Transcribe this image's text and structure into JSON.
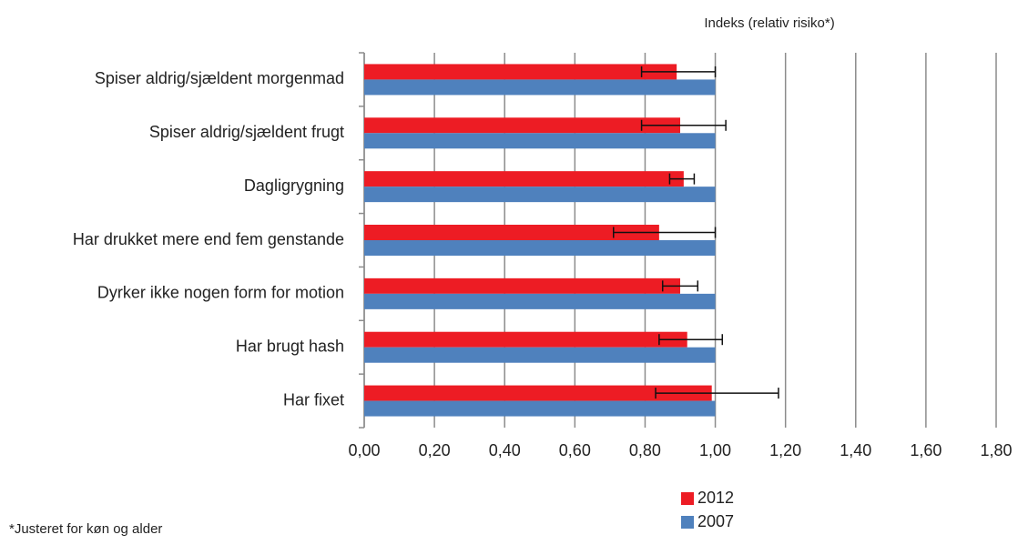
{
  "chart_data": {
    "type": "hbar",
    "axis_title": "Indeks (relativ risiko*)",
    "footnote": "*Justeret for køn og alder",
    "categories": [
      "Spiser aldrig/sjældent morgenmad",
      "Spiser aldrig/sjældent frugt",
      "Dagligrygning",
      "Har drukket mere end fem genstande",
      "Dyrker ikke nogen form for motion",
      "Har brugt hash",
      "Har fixet"
    ],
    "series": [
      {
        "name": "2012",
        "color": "#ed1c24",
        "values": [
          0.89,
          0.9,
          0.91,
          0.84,
          0.9,
          0.92,
          0.99
        ],
        "ci_low": [
          0.79,
          0.79,
          0.87,
          0.71,
          0.85,
          0.84,
          0.83
        ],
        "ci_high": [
          1.0,
          1.03,
          0.94,
          1.0,
          0.95,
          1.02,
          1.18
        ]
      },
      {
        "name": "2007",
        "color": "#4f81bd",
        "values": [
          1.0,
          1.0,
          1.0,
          1.0,
          1.0,
          1.0,
          1.0
        ]
      }
    ],
    "xlim": [
      0,
      1.8
    ],
    "xticks": [
      {
        "value": 0,
        "label": "0,00"
      },
      {
        "value": 0.2,
        "label": "0,20"
      },
      {
        "value": 0.4,
        "label": "0,40"
      },
      {
        "value": 0.6,
        "label": "0,60"
      },
      {
        "value": 0.8,
        "label": "0,80"
      },
      {
        "value": 1.0,
        "label": "1,00"
      },
      {
        "value": 1.2,
        "label": "1,20"
      },
      {
        "value": 1.4,
        "label": "1,40"
      },
      {
        "value": 1.6,
        "label": "1,60"
      },
      {
        "value": 1.8,
        "label": "1,80"
      }
    ],
    "grid": true
  }
}
